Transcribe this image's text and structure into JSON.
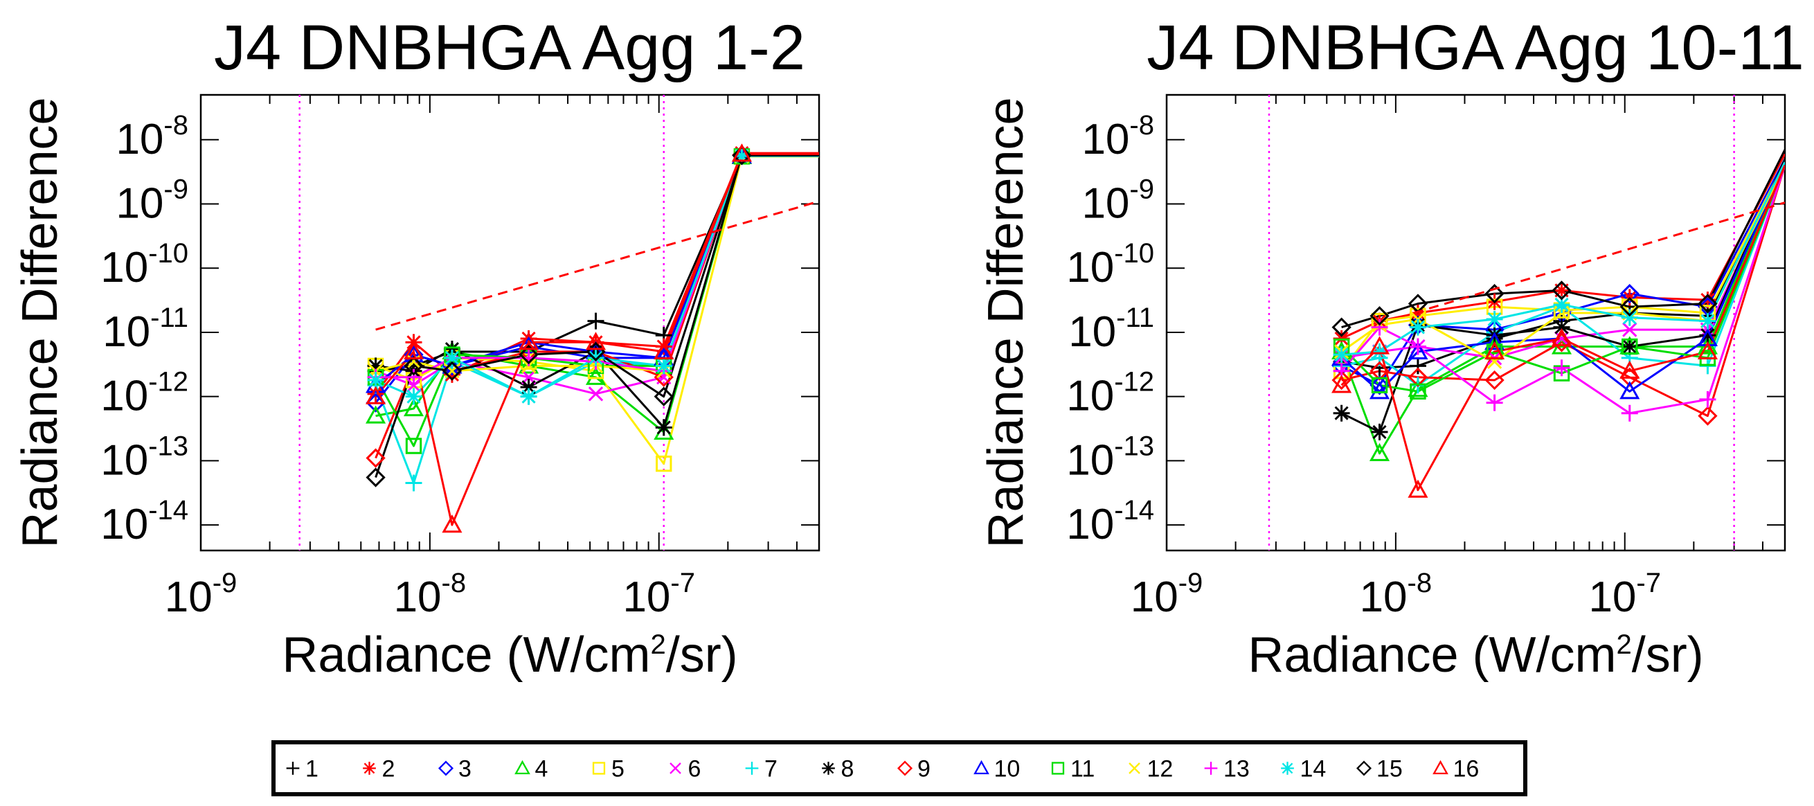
{
  "chart_data": [
    {
      "type": "line",
      "title": "J4 DNBHGA Agg 1-2",
      "xlabel": "Radiance (W/cm²/sr)",
      "xlabel_parts": {
        "pre": "Radiance (W/cm",
        "sup": "2",
        "post": "/sr)"
      },
      "ylabel": "Radiance Difference",
      "xscale": "log",
      "yscale": "log",
      "xlim": [
        1e-09,
        5e-07
      ],
      "ylim": [
        4e-15,
        5e-08
      ],
      "x_ticks": [
        {
          "base": "10",
          "exp": "-9"
        },
        {
          "base": "10",
          "exp": "-8"
        },
        {
          "base": "10",
          "exp": "-7"
        }
      ],
      "y_ticks": [
        {
          "base": "10",
          "exp": "-8"
        },
        {
          "base": "10",
          "exp": "-9"
        },
        {
          "base": "10",
          "exp": "-10"
        },
        {
          "base": "10",
          "exp": "-11"
        },
        {
          "base": "10",
          "exp": "-12"
        },
        {
          "base": "10",
          "exp": "-13"
        },
        {
          "base": "10",
          "exp": "-14"
        }
      ],
      "vlines": [
        2.7e-09,
        1.05e-07
      ],
      "reference_line": {
        "x": [
          5.8e-09,
          5e-07
        ],
        "y": [
          1.1e-11,
          1.1e-09
        ]
      },
      "x": [
        5.8e-09,
        8.5e-09,
        1.25e-08,
        2.7e-08,
        5.3e-08,
        1.05e-07,
        2.3e-07,
        5e-07
      ],
      "series": [
        {
          "name": "1",
          "values": [
            2.5e-12,
            3e-12,
            5e-12,
            5e-12,
            1.5e-11,
            9e-12,
            5.6e-09,
            5.6e-09
          ]
        },
        {
          "name": "2",
          "values": [
            1.1e-12,
            7e-12,
            2.2e-12,
            8e-12,
            7e-12,
            6e-12,
            6.2e-09,
            6.2e-09
          ]
        },
        {
          "name": "3",
          "values": [
            8e-13,
            4.5e-12,
            3e-12,
            6e-12,
            4e-12,
            4e-12,
            5.8e-09,
            5.8e-09
          ]
        },
        {
          "name": "4",
          "values": [
            5e-13,
            6.5e-13,
            5e-12,
            3e-12,
            2e-12,
            2.8e-13,
            5.5e-09,
            5.5e-09
          ]
        },
        {
          "name": "5",
          "values": [
            3e-12,
            1.8e-12,
            4e-12,
            3.5e-12,
            2.5e-12,
            9e-14,
            5.5e-09,
            5.5e-09
          ]
        },
        {
          "name": "6",
          "values": [
            2.5e-12,
            1.5e-12,
            3.5e-12,
            2e-12,
            1.1e-12,
            2e-12,
            5.8e-09,
            5.8e-09
          ]
        },
        {
          "name": "7",
          "values": [
            1.5e-12,
            4.5e-14,
            3.5e-12,
            1e-12,
            3.5e-12,
            3e-12,
            5.5e-09,
            5.5e-09
          ]
        },
        {
          "name": "8",
          "values": [
            3e-12,
            2.5e-12,
            5.5e-12,
            1.4e-12,
            5e-12,
            3.3e-13,
            5.8e-09,
            5.8e-09
          ]
        },
        {
          "name": "9",
          "values": [
            1.1e-13,
            3e-12,
            2.5e-12,
            5e-12,
            5e-12,
            2e-12,
            5.8e-09,
            5.8e-09
          ]
        },
        {
          "name": "10",
          "values": [
            1.5e-12,
            4.5e-12,
            3e-12,
            7e-12,
            5e-12,
            4e-12,
            5.6e-09,
            5.6e-09
          ]
        },
        {
          "name": "11",
          "values": [
            2e-12,
            1.7e-13,
            4.5e-12,
            4e-12,
            3e-12,
            3e-12,
            5.5e-09,
            5.5e-09
          ]
        },
        {
          "name": "12",
          "values": [
            2.5e-12,
            3.5e-12,
            2.5e-12,
            3e-12,
            3e-12,
            2.5e-12,
            5.5e-09,
            5.5e-09
          ]
        },
        {
          "name": "13",
          "values": [
            2e-12,
            2e-12,
            4e-12,
            4e-12,
            3.5e-12,
            2.5e-12,
            5.6e-09,
            5.6e-09
          ]
        },
        {
          "name": "14",
          "values": [
            1.8e-12,
            1e-12,
            4e-12,
            1e-12,
            4e-12,
            3e-12,
            5.6e-09,
            5.6e-09
          ]
        },
        {
          "name": "15",
          "values": [
            5.5e-14,
            3e-12,
            2.5e-12,
            4.5e-12,
            5e-12,
            1e-12,
            5.7e-09,
            5.7e-09
          ]
        },
        {
          "name": "16",
          "values": [
            1e-12,
            5e-12,
            1e-14,
            7e-12,
            7e-12,
            5e-12,
            6e-09,
            6e-09
          ]
        }
      ]
    },
    {
      "type": "line",
      "title": "J4 DNBHGA Agg 10-11",
      "xlabel": "Radiance (W/cm²/sr)",
      "xlabel_parts": {
        "pre": "Radiance (W/cm",
        "sup": "2",
        "post": "/sr)"
      },
      "ylabel": "Radiance Difference",
      "xscale": "log",
      "yscale": "log",
      "xlim": [
        1e-09,
        5e-07
      ],
      "ylim": [
        4e-15,
        5e-08
      ],
      "x_ticks": [
        {
          "base": "10",
          "exp": "-9"
        },
        {
          "base": "10",
          "exp": "-8"
        },
        {
          "base": "10",
          "exp": "-7"
        }
      ],
      "y_ticks": [
        {
          "base": "10",
          "exp": "-8"
        },
        {
          "base": "10",
          "exp": "-9"
        },
        {
          "base": "10",
          "exp": "-10"
        },
        {
          "base": "10",
          "exp": "-11"
        },
        {
          "base": "10",
          "exp": "-12"
        },
        {
          "base": "10",
          "exp": "-13"
        },
        {
          "base": "10",
          "exp": "-14"
        }
      ],
      "vlines": [
        2.8e-09,
        3e-07
      ],
      "reference_line": {
        "x": [
          1.2e-08,
          5e-07
        ],
        "y": [
          2e-11,
          1.05e-09
        ]
      },
      "x": [
        5.8e-09,
        8.5e-09,
        1.25e-08,
        2.7e-08,
        5.3e-08,
        1.05e-07,
        2.3e-07,
        5e-07
      ],
      "series": [
        {
          "name": "1",
          "values": [
            3.5e-12,
            2.8e-12,
            3e-12,
            8e-12,
            1.5e-11,
            2e-11,
            1.8e-11,
            4e-09
          ]
        },
        {
          "name": "2",
          "values": [
            8e-12,
            1.5e-11,
            2e-11,
            3e-11,
            4.5e-11,
            3.5e-11,
            3.2e-11,
            6e-09
          ]
        },
        {
          "name": "3",
          "values": [
            3e-12,
            1.5e-12,
            1.3e-11,
            1.1e-11,
            2e-11,
            4e-11,
            2.5e-11,
            5e-09
          ]
        },
        {
          "name": "4",
          "values": [
            5e-12,
            1.3e-13,
            1.3e-12,
            6e-12,
            6e-12,
            6e-12,
            6e-12,
            4.5e-09
          ]
        },
        {
          "name": "5",
          "values": [
            2.5e-12,
            1.5e-11,
            1.8e-11,
            2.5e-11,
            2.2e-11,
            2.5e-11,
            2e-11,
            4.5e-09
          ]
        },
        {
          "name": "6",
          "values": [
            4e-12,
            5e-12,
            6e-12,
            4e-12,
            8e-12,
            1.1e-11,
            1.1e-11,
            4e-09
          ]
        },
        {
          "name": "7",
          "values": [
            3e-12,
            4e-12,
            1.5e-12,
            1e-11,
            2.5e-11,
            4e-12,
            3e-12,
            4e-09
          ]
        },
        {
          "name": "8",
          "values": [
            5.5e-13,
            2.8e-13,
            1.3e-11,
            9e-12,
            1.2e-11,
            6e-12,
            9e-12,
            5e-09
          ]
        },
        {
          "name": "9",
          "values": [
            1.8e-12,
            2.5e-12,
            2e-12,
            1.8e-12,
            7e-12,
            2e-12,
            5e-13,
            4e-09
          ]
        },
        {
          "name": "10",
          "values": [
            4e-12,
            1.2e-12,
            5e-12,
            7e-12,
            8e-12,
            1.2e-12,
            8e-12,
            4.5e-09
          ]
        },
        {
          "name": "11",
          "values": [
            6e-12,
            1.5e-12,
            1.2e-12,
            5e-12,
            2.3e-12,
            6e-12,
            4e-12,
            4e-09
          ]
        },
        {
          "name": "12",
          "values": [
            5e-12,
            1.3e-11,
            1.6e-11,
            3.5e-12,
            2e-11,
            2e-11,
            1.5e-11,
            4e-09
          ]
        },
        {
          "name": "13",
          "values": [
            2.5e-12,
            1.2e-11,
            6e-12,
            8e-13,
            2.8e-12,
            5.5e-13,
            9e-13,
            4e-09
          ]
        },
        {
          "name": "14",
          "values": [
            4.5e-12,
            5e-12,
            1.2e-11,
            1.6e-11,
            2.7e-11,
            1.7e-11,
            1.5e-11,
            4.5e-09
          ]
        },
        {
          "name": "15",
          "values": [
            1.2e-11,
            1.8e-11,
            2.8e-11,
            4e-11,
            4.5e-11,
            2.5e-11,
            2.8e-11,
            7e-09
          ]
        },
        {
          "name": "16",
          "values": [
            1.5e-12,
            6e-12,
            3.5e-14,
            5e-12,
            8e-12,
            2.5e-12,
            5e-12,
            4e-09
          ]
        }
      ]
    }
  ],
  "legend": [
    {
      "label": "1",
      "marker": "plus",
      "color": "#000000"
    },
    {
      "label": "2",
      "marker": "asterisk",
      "color": "#ff0000"
    },
    {
      "label": "3",
      "marker": "diamond",
      "color": "#0000ff"
    },
    {
      "label": "4",
      "marker": "triangle",
      "color": "#00dd00"
    },
    {
      "label": "5",
      "marker": "square",
      "color": "#ffee00"
    },
    {
      "label": "6",
      "marker": "x",
      "color": "#ff00ff"
    },
    {
      "label": "7",
      "marker": "plus",
      "color": "#00e5e5"
    },
    {
      "label": "8",
      "marker": "asterisk",
      "color": "#000000"
    },
    {
      "label": "9",
      "marker": "diamond",
      "color": "#ff0000"
    },
    {
      "label": "10",
      "marker": "triangle",
      "color": "#0000ff"
    },
    {
      "label": "11",
      "marker": "square",
      "color": "#00dd00"
    },
    {
      "label": "12",
      "marker": "x",
      "color": "#ffee00"
    },
    {
      "label": "13",
      "marker": "plus",
      "color": "#ff00ff"
    },
    {
      "label": "14",
      "marker": "asterisk",
      "color": "#00e5e5"
    },
    {
      "label": "15",
      "marker": "diamond",
      "color": "#000000"
    },
    {
      "label": "16",
      "marker": "triangle",
      "color": "#ff0000"
    }
  ]
}
